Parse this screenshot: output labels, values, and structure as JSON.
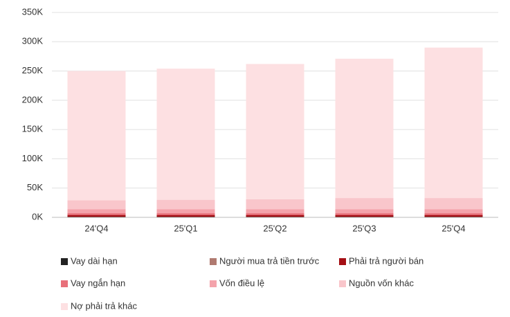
{
  "chart_data": {
    "type": "stacked_bar",
    "categories": [
      "24'Q4",
      "25'Q1",
      "25'Q2",
      "25'Q3",
      "25'Q4"
    ],
    "series": [
      {
        "name": "Vay dài hạn",
        "color": "#222222",
        "values": [
          0.5,
          0.5,
          0.5,
          0.5,
          0.5
        ]
      },
      {
        "name": "Người mua trả tiền trước",
        "color": "#b07a70",
        "values": [
          0.5,
          0.5,
          0.5,
          0.5,
          0.5
        ]
      },
      {
        "name": "Phải trả người bán",
        "color": "#a50f15",
        "values": [
          3,
          3,
          3,
          3,
          3
        ]
      },
      {
        "name": "Vay ngắn hạn",
        "color": "#e8707a",
        "values": [
          3,
          3,
          3,
          3,
          3
        ]
      },
      {
        "name": "Vốn điều lệ",
        "color": "#f4a3ab",
        "values": [
          7,
          7,
          7,
          7,
          7
        ]
      },
      {
        "name": "Nguồn vốn khác",
        "color": "#f9c6cb",
        "values": [
          15,
          16,
          17,
          19,
          19
        ]
      },
      {
        "name": "Nợ phải trả khác",
        "color": "#fde0e2",
        "values": [
          221,
          224,
          231,
          238,
          257
        ]
      }
    ],
    "ylim": [
      0,
      350
    ],
    "yticks": [
      {
        "value": 0,
        "label": "0K"
      },
      {
        "value": 50,
        "label": "50K"
      },
      {
        "value": 100,
        "label": "100K"
      },
      {
        "value": 150,
        "label": "150K"
      },
      {
        "value": 200,
        "label": "200K"
      },
      {
        "value": 250,
        "label": "250K"
      },
      {
        "value": 300,
        "label": "300K"
      },
      {
        "value": 350,
        "label": "350K"
      }
    ],
    "grid": true
  }
}
